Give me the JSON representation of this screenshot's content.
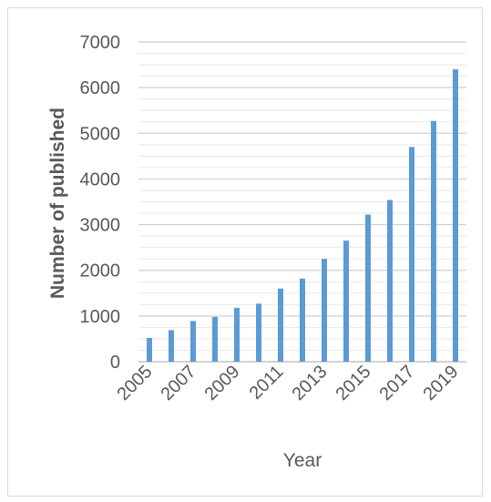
{
  "chart_data": {
    "type": "bar",
    "categories": [
      "2005",
      "2006",
      "2007",
      "2008",
      "2009",
      "2010",
      "2011",
      "2012",
      "2013",
      "2014",
      "2015",
      "2016",
      "2017",
      "2018",
      "2019"
    ],
    "x_tick_labels": [
      "2005",
      "2007",
      "2009",
      "2011",
      "2013",
      "2015",
      "2017",
      "2019"
    ],
    "values": [
      520,
      690,
      890,
      980,
      1180,
      1270,
      1600,
      1820,
      2250,
      2650,
      3220,
      3540,
      4700,
      5270,
      6400
    ],
    "xlabel": "Year",
    "ylabel": "Number of published",
    "ylim": [
      0,
      7000
    ],
    "y_ticks": [
      0,
      1000,
      2000,
      3000,
      4000,
      5000,
      6000,
      7000
    ],
    "grid": true,
    "bar_color": "#5b9bd5",
    "gridline_color": "#d9d9d9"
  }
}
